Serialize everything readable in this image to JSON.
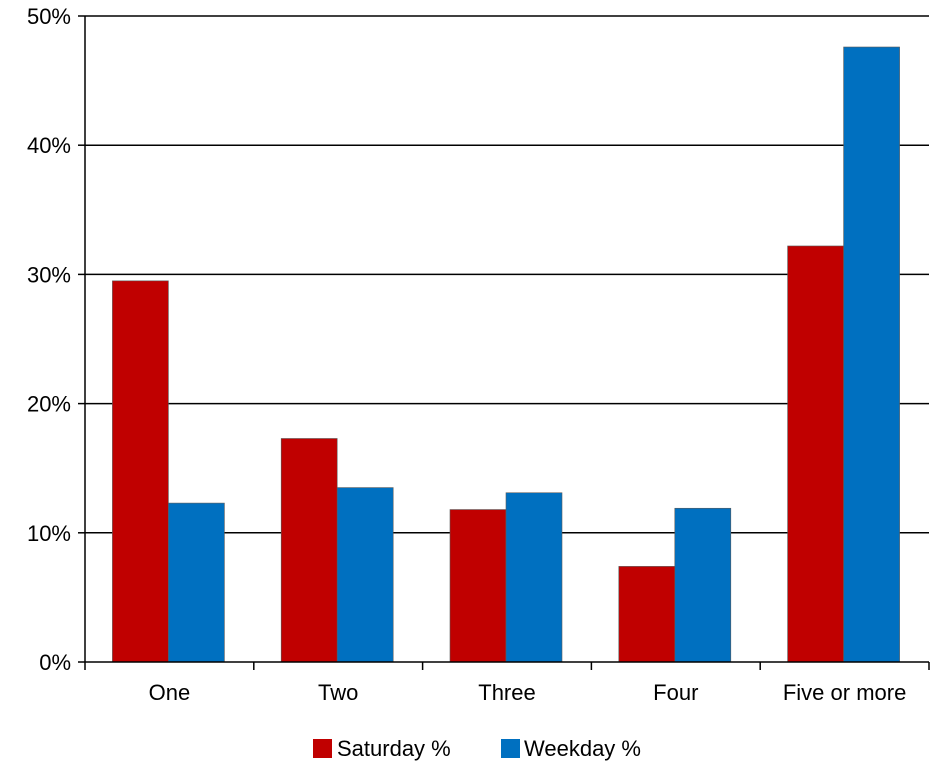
{
  "chart_data": {
    "type": "bar",
    "title": "",
    "xlabel": "",
    "ylabel": "",
    "categories": [
      "One",
      "Two",
      "Three",
      "Four",
      "Five or more"
    ],
    "series": [
      {
        "name": "Saturday %",
        "color": "#c00000",
        "values": [
          29.5,
          17.3,
          11.8,
          7.4,
          32.2
        ]
      },
      {
        "name": "Weekday %",
        "color": "#0070c0",
        "values": [
          12.3,
          13.5,
          13.1,
          11.9,
          47.6
        ]
      }
    ],
    "ylim": [
      0,
      50
    ],
    "y_ticks": [
      {
        "value": 0,
        "label": "0%"
      },
      {
        "value": 10,
        "label": "10%"
      },
      {
        "value": 20,
        "label": "20%"
      },
      {
        "value": 30,
        "label": "30%"
      },
      {
        "value": 40,
        "label": "40%"
      },
      {
        "value": 50,
        "label": "50%"
      }
    ],
    "grid": true,
    "legend_position": "bottom-center"
  }
}
